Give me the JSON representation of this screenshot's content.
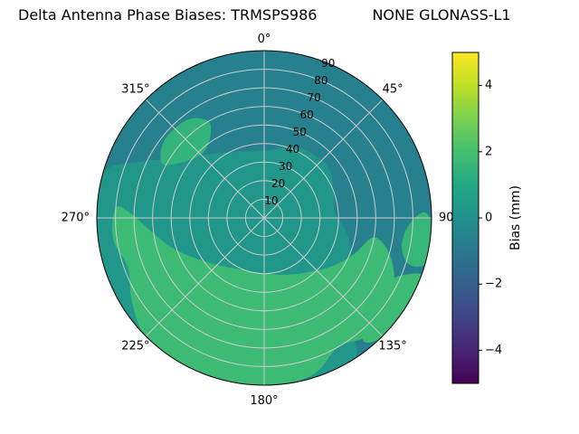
{
  "title": "Delta Antenna Phase Biases: TRMSPS986            NONE GLONASS-L1",
  "title_parts": {
    "prefix": "Delta Antenna Phase Biases:",
    "antenna": "TRMSPS986",
    "radome": "NONE",
    "signal": "GLONASS-L1"
  },
  "chart_data": {
    "type": "heatmap",
    "projection": "polar",
    "title": "Delta Antenna Phase Biases: TRMSPS986            NONE GLONASS-L1",
    "theta_zero": "north",
    "theta_direction": "clockwise",
    "grid": true,
    "angular_ticks_deg": [
      0,
      45,
      90,
      135,
      180,
      225,
      270,
      315
    ],
    "angular_tick_labels": [
      "0°",
      "45°",
      "90",
      "135°",
      "180°",
      "225°",
      "270°",
      "315°"
    ],
    "radial_ticks": [
      "10",
      "20",
      "30",
      "40",
      "50",
      "60",
      "70",
      "80",
      "90"
    ],
    "radial_tick_values": [
      10,
      20,
      30,
      40,
      50,
      60,
      70,
      80,
      90
    ],
    "radial_range": [
      0,
      90
    ],
    "colorbar": {
      "label": "Bias (mm)",
      "min": -5,
      "max": 5,
      "tick_labels": [
        "4",
        "2",
        "0",
        "−2",
        "−4"
      ],
      "tick_values": [
        4,
        2,
        0,
        -2,
        -4
      ],
      "colormap": "viridis",
      "stops": [
        [
          0.0,
          "#440154"
        ],
        [
          0.1,
          "#482475"
        ],
        [
          0.2,
          "#414487"
        ],
        [
          0.3,
          "#355f8d"
        ],
        [
          0.4,
          "#2a788e"
        ],
        [
          0.5,
          "#21918c"
        ],
        [
          0.6,
          "#22a884"
        ],
        [
          0.7,
          "#44bf70"
        ],
        [
          0.8,
          "#7ad151"
        ],
        [
          0.9,
          "#bddf26"
        ],
        [
          1.0,
          "#fde725"
        ]
      ]
    },
    "field": {
      "units": "mm",
      "base_bias_mm": -0.7,
      "regions": [
        {
          "name": "central-southwest-plateau",
          "bias_mm": 0.2,
          "points": [
            [
              0,
              36
            ],
            [
              25,
              42
            ],
            [
              50,
              44
            ],
            [
              70,
              40
            ],
            [
              85,
              38
            ],
            [
              100,
              45
            ],
            [
              115,
              52
            ],
            [
              130,
              62
            ],
            [
              140,
              74
            ],
            [
              148,
              91
            ],
            [
              165,
              91
            ],
            [
              185,
              91
            ],
            [
              205,
              91
            ],
            [
              225,
              91
            ],
            [
              245,
              91
            ],
            [
              265,
              91
            ],
            [
              285,
              91
            ],
            [
              295,
              72
            ],
            [
              305,
              55
            ],
            [
              318,
              46
            ],
            [
              332,
              40
            ],
            [
              346,
              37
            ]
          ]
        },
        {
          "name": "south-green-anomaly",
          "bias_mm": 1.8,
          "points": [
            [
              100,
              60
            ],
            [
              112,
              52
            ],
            [
              125,
              45
            ],
            [
              140,
              38
            ],
            [
              158,
              33
            ],
            [
              178,
              30
            ],
            [
              200,
              30
            ],
            [
              220,
              34
            ],
            [
              238,
              42
            ],
            [
              252,
              52
            ],
            [
              264,
              62
            ],
            [
              272,
              72
            ],
            [
              274,
              80
            ],
            [
              262,
              82
            ],
            [
              250,
              78
            ],
            [
              238,
              84
            ],
            [
              224,
              91
            ],
            [
              208,
              91
            ],
            [
              192,
              91
            ],
            [
              176,
              91
            ],
            [
              162,
              88
            ],
            [
              150,
              80
            ],
            [
              140,
              84
            ],
            [
              128,
              86
            ],
            [
              116,
              78
            ],
            [
              106,
              70
            ]
          ]
        },
        {
          "name": "southeast-rim-patch",
          "bias_mm": 1.8,
          "points": [
            [
              110,
              91
            ],
            [
              114,
              78
            ],
            [
              124,
              72
            ],
            [
              136,
              76
            ],
            [
              141,
              86
            ],
            [
              133,
              91
            ],
            [
              121,
              90
            ]
          ]
        },
        {
          "name": "east-rim-patch",
          "bias_mm": 1.6,
          "points": [
            [
              88,
              86
            ],
            [
              94,
              77
            ],
            [
              103,
              76
            ],
            [
              108,
              83
            ],
            [
              105,
              91
            ],
            [
              94,
              91
            ]
          ]
        },
        {
          "name": "northwest-patch",
          "bias_mm": 1.5,
          "points": [
            [
              298,
              62
            ],
            [
              306,
              52
            ],
            [
              316,
              48
            ],
            [
              326,
              52
            ],
            [
              330,
              60
            ],
            [
              322,
              67
            ],
            [
              308,
              68
            ]
          ]
        }
      ]
    }
  }
}
